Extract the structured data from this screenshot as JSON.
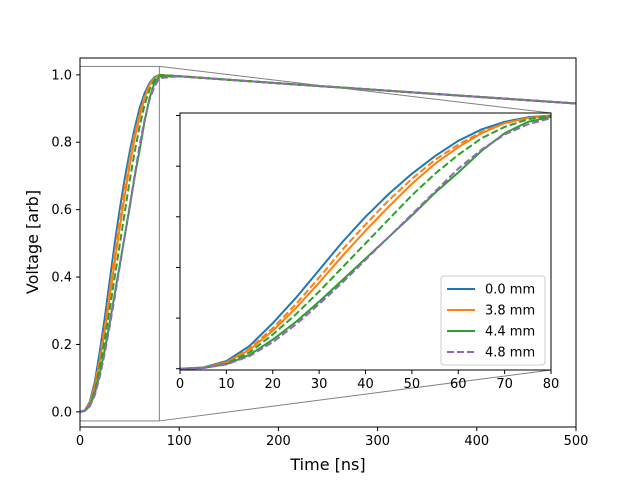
{
  "chart_data": {
    "type": "line",
    "xlabel": "Time [ns]",
    "ylabel": "Voltage [arb]",
    "xlim": [
      0,
      500
    ],
    "ylim": [
      -0.045,
      1.05
    ],
    "x_ticks": [
      0,
      100,
      200,
      300,
      400,
      500
    ],
    "y_ticks": [
      0.0,
      0.2,
      0.4,
      0.6,
      0.8,
      1.0
    ],
    "x_tick_labels": [
      "0",
      "100",
      "200",
      "300",
      "400",
      "500"
    ],
    "y_tick_labels": [
      "0.0",
      "0.2",
      "0.4",
      "0.6",
      "0.8",
      "1.0"
    ],
    "grid": false,
    "legend_position": "lower right of inset",
    "colors": {
      "blue": "#1f77b4",
      "orange": "#ff7f0e",
      "green": "#2ca02c",
      "purple": "#9467bd"
    },
    "series": [
      {
        "name": "0.0 mm",
        "color": "#1f77b4",
        "linestyle": "solid",
        "x": [
          0,
          5,
          10,
          15,
          20,
          25,
          30,
          35,
          40,
          45,
          50,
          55,
          60,
          65,
          70,
          75,
          80,
          100,
          200,
          300,
          400,
          500
        ],
        "y": [
          0.0,
          0.005,
          0.03,
          0.09,
          0.18,
          0.28,
          0.39,
          0.5,
          0.6,
          0.69,
          0.77,
          0.84,
          0.9,
          0.945,
          0.975,
          0.993,
          1.0,
          0.996,
          0.975,
          0.955,
          0.935,
          0.915
        ]
      },
      {
        "name": "",
        "color": "#ff7f0e",
        "linestyle": "dashed",
        "x": [
          0,
          5,
          10,
          15,
          20,
          25,
          30,
          35,
          40,
          45,
          50,
          55,
          60,
          65,
          70,
          75,
          80,
          100,
          200,
          300,
          400,
          500
        ],
        "y": [
          0.0,
          0.004,
          0.025,
          0.08,
          0.16,
          0.255,
          0.36,
          0.47,
          0.57,
          0.665,
          0.75,
          0.825,
          0.885,
          0.935,
          0.97,
          0.99,
          1.0,
          0.996,
          0.975,
          0.955,
          0.935,
          0.915
        ]
      },
      {
        "name": "3.8 mm",
        "color": "#ff7f0e",
        "linestyle": "solid",
        "x": [
          0,
          5,
          10,
          15,
          20,
          25,
          30,
          35,
          40,
          45,
          50,
          55,
          60,
          65,
          70,
          75,
          80,
          100,
          200,
          300,
          400,
          500
        ],
        "y": [
          0.0,
          0.004,
          0.025,
          0.075,
          0.15,
          0.24,
          0.34,
          0.445,
          0.545,
          0.64,
          0.73,
          0.81,
          0.875,
          0.93,
          0.97,
          0.99,
          1.0,
          0.996,
          0.975,
          0.955,
          0.935,
          0.915
        ]
      },
      {
        "name": "",
        "color": "#2ca02c",
        "linestyle": "dashed",
        "x": [
          0,
          5,
          10,
          15,
          20,
          25,
          30,
          35,
          40,
          45,
          50,
          55,
          60,
          65,
          70,
          75,
          80,
          100,
          200,
          300,
          400,
          500
        ],
        "y": [
          0.0,
          0.003,
          0.02,
          0.065,
          0.135,
          0.215,
          0.305,
          0.4,
          0.495,
          0.59,
          0.685,
          0.77,
          0.845,
          0.91,
          0.955,
          0.985,
          1.0,
          0.996,
          0.975,
          0.955,
          0.935,
          0.915
        ]
      },
      {
        "name": "4.4 mm",
        "color": "#2ca02c",
        "linestyle": "solid",
        "x": [
          0,
          5,
          10,
          15,
          20,
          25,
          30,
          35,
          40,
          45,
          50,
          55,
          60,
          65,
          70,
          75,
          80,
          100,
          200,
          300,
          400,
          500
        ],
        "y": [
          0.0,
          0.003,
          0.018,
          0.055,
          0.115,
          0.185,
          0.265,
          0.35,
          0.435,
          0.52,
          0.605,
          0.695,
          0.775,
          0.86,
          0.93,
          0.975,
          0.995,
          0.996,
          0.975,
          0.955,
          0.935,
          0.915
        ]
      },
      {
        "name": "4.8 mm",
        "color": "#9467bd",
        "linestyle": "dashed",
        "x": [
          0,
          5,
          10,
          15,
          20,
          25,
          30,
          35,
          40,
          45,
          50,
          55,
          60,
          65,
          70,
          75,
          80,
          100,
          200,
          300,
          400,
          500
        ],
        "y": [
          0.0,
          0.003,
          0.017,
          0.05,
          0.105,
          0.175,
          0.255,
          0.34,
          0.43,
          0.52,
          0.61,
          0.7,
          0.79,
          0.865,
          0.925,
          0.965,
          0.99,
          0.996,
          0.975,
          0.955,
          0.935,
          0.915
        ]
      }
    ],
    "inset": {
      "xlim": [
        0,
        80
      ],
      "ylim": [
        -0.005,
        1.01
      ],
      "x_ticks": [
        0,
        10,
        20,
        30,
        40,
        50,
        60,
        70,
        80
      ],
      "x_tick_labels": [
        "0",
        "10",
        "20",
        "30",
        "40",
        "50",
        "60",
        "70",
        "80"
      ],
      "y_ticks": [
        0.0,
        0.2,
        0.4,
        0.6,
        0.8,
        1.0
      ],
      "y_tick_labels_shown": false,
      "zoom_box": {
        "xlim": [
          0,
          80
        ],
        "ylim": [
          -0.027,
          1.025
        ]
      }
    }
  }
}
